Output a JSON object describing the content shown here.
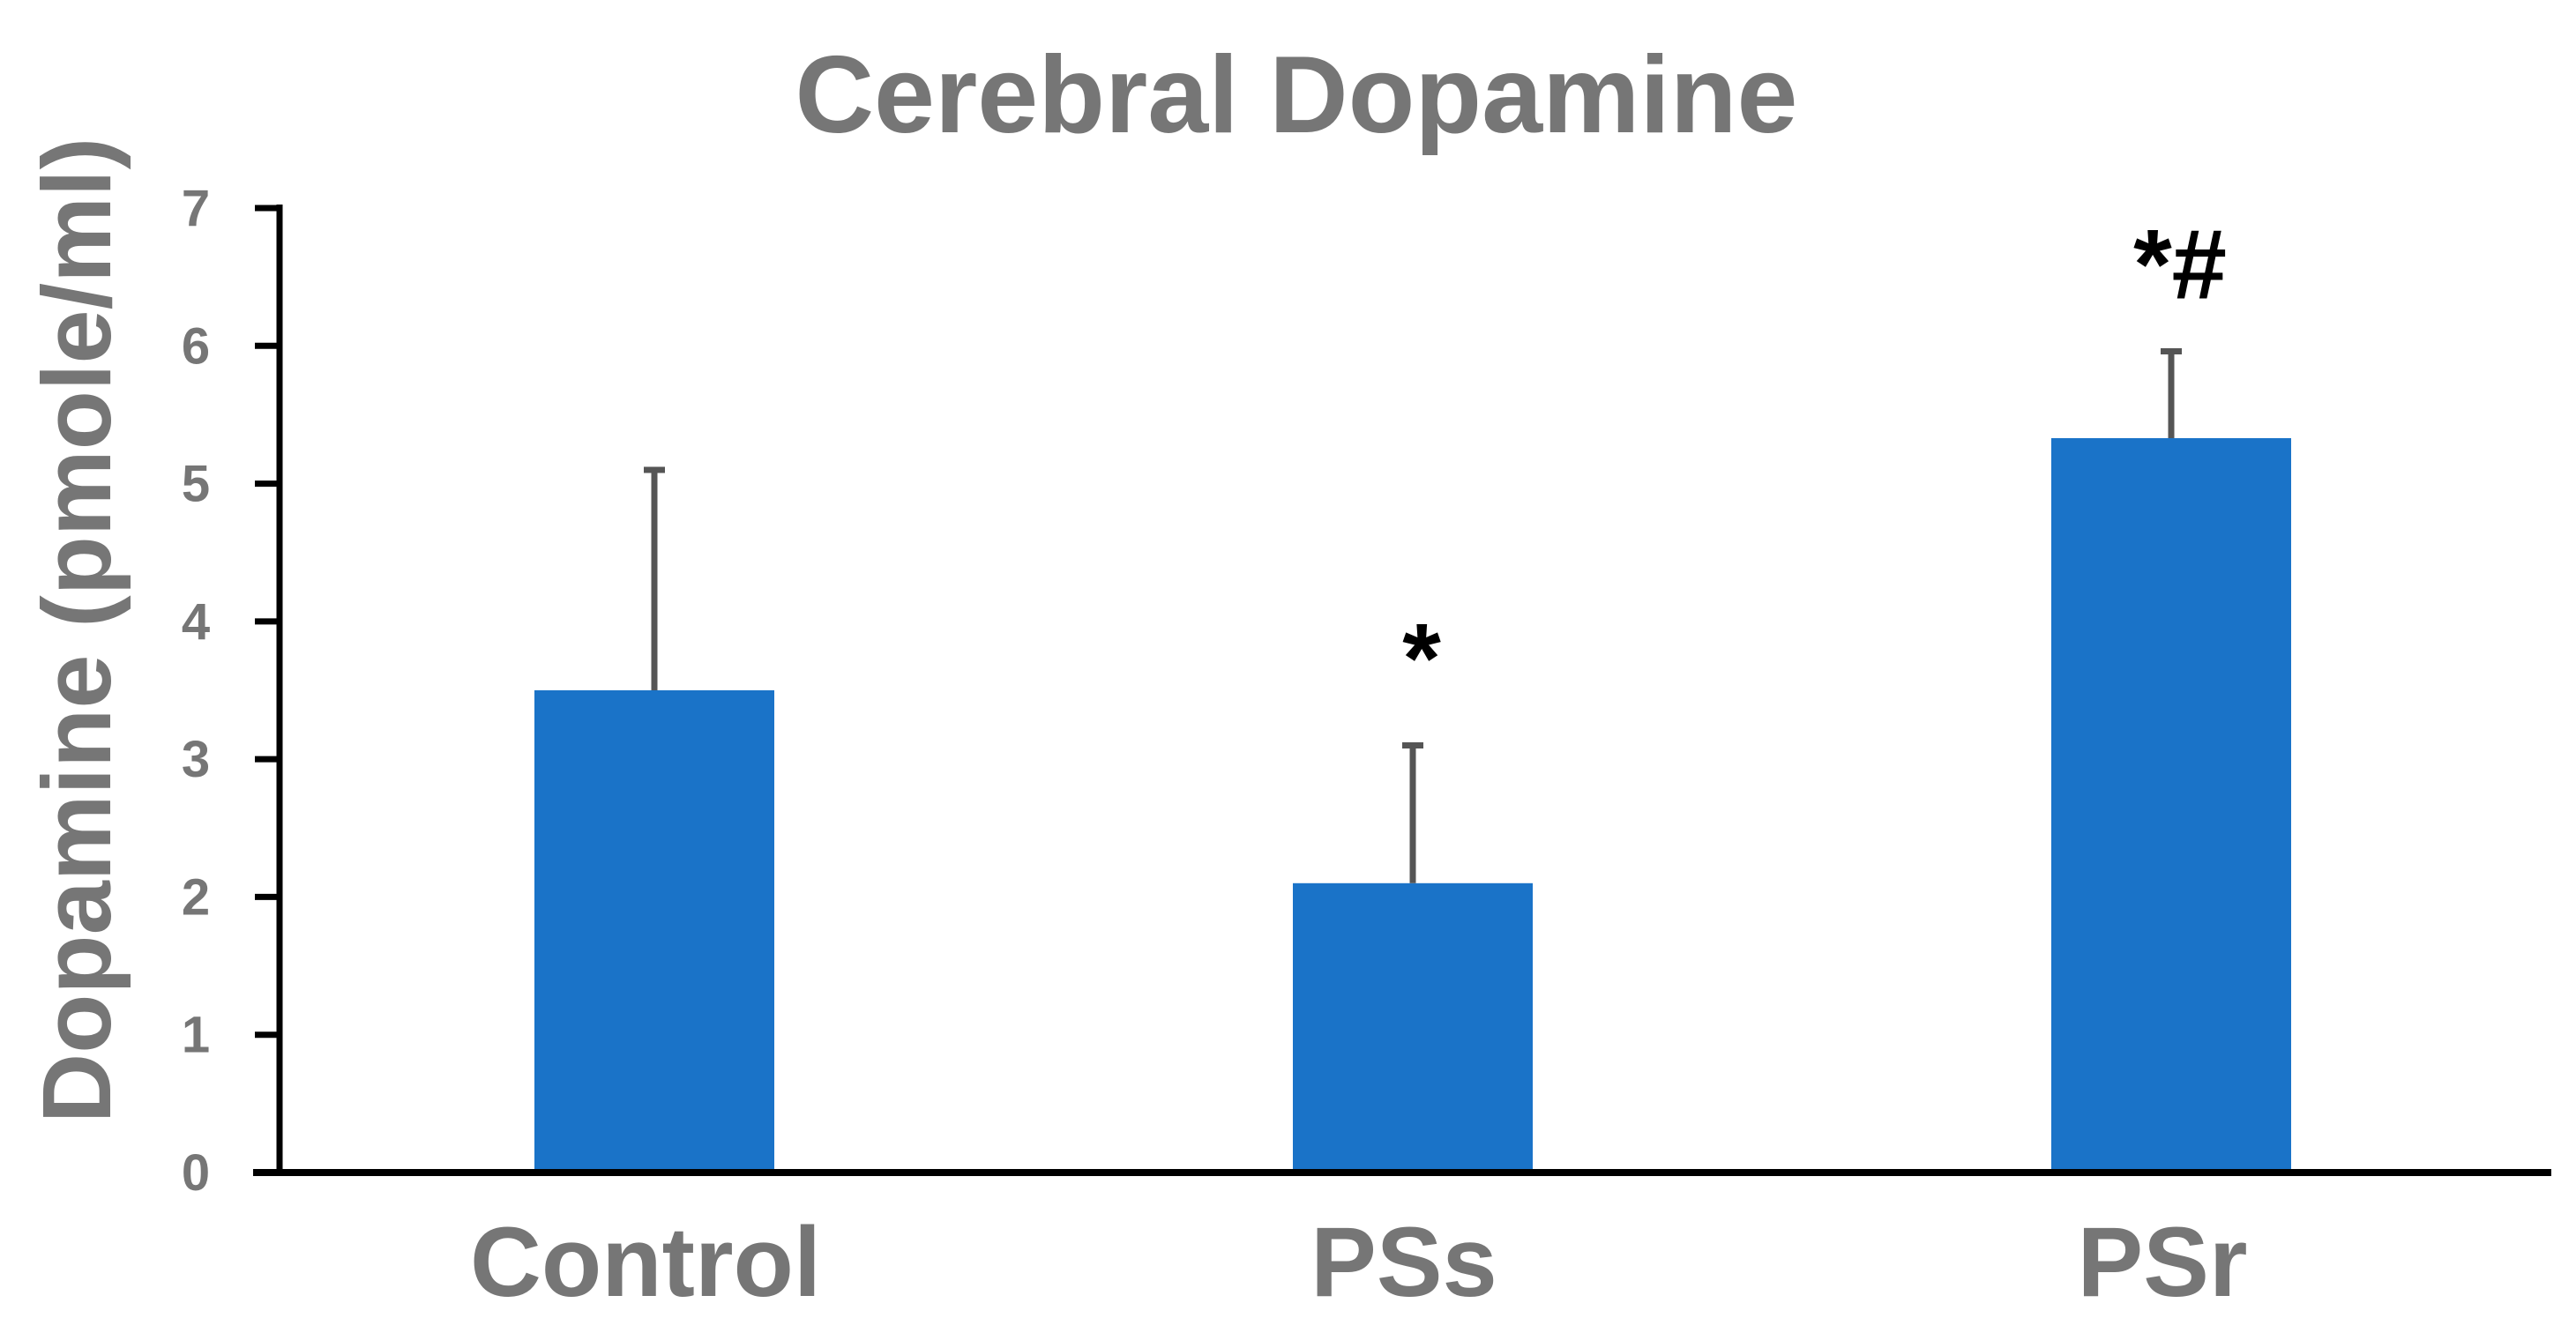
{
  "chart_data": {
    "type": "bar",
    "title": "Cerebral Dopamine",
    "xlabel": "",
    "ylabel": "Dopamine (pmole/ml)",
    "categories": [
      "Control",
      "PSs",
      "PSr"
    ],
    "values": [
      3.5,
      2.1,
      5.33
    ],
    "error_bars": [
      1.6,
      1.0,
      0.63
    ],
    "annotations": [
      "",
      "*",
      "*#"
    ],
    "ylim": [
      0,
      7
    ],
    "yticks": [
      "0",
      "1",
      "2",
      "3",
      "4",
      "5",
      "6",
      "7"
    ],
    "grid": false,
    "legend": "none",
    "colors": {
      "bar": "#1a73c8",
      "error_bar": "#555555",
      "axis": "#000000",
      "text": "#767676",
      "annotation": "#000000"
    }
  }
}
